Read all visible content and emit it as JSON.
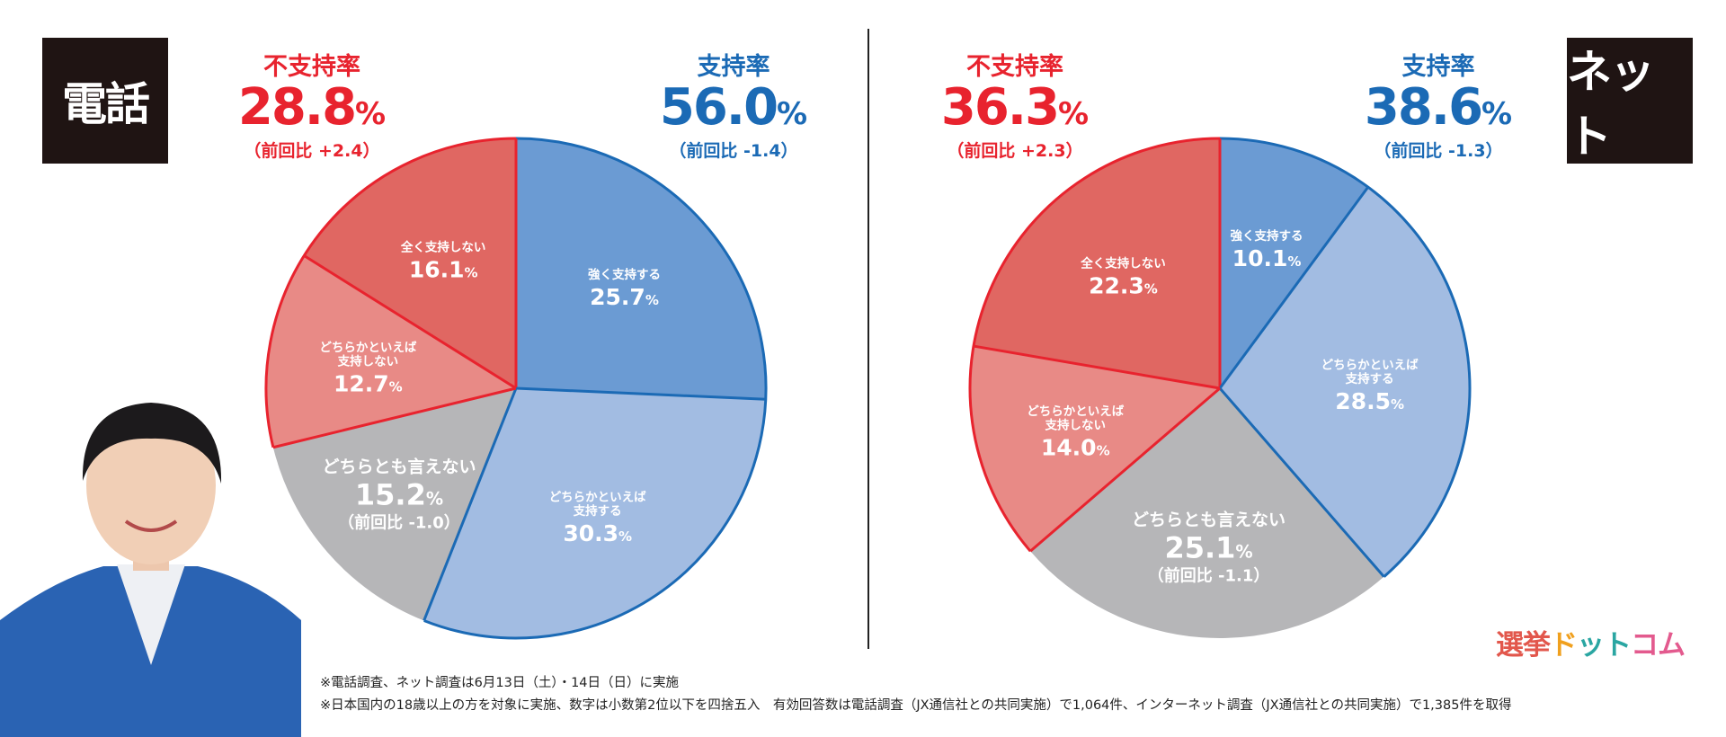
{
  "badges": {
    "phone": "電話",
    "net": "ネット"
  },
  "summary": {
    "phone": {
      "disapprove": {
        "label": "不支持率",
        "value": "28.8",
        "unit": "%",
        "diff": "（前回比 +2.4）"
      },
      "approve": {
        "label": "支持率",
        "value": "56.0",
        "unit": "%",
        "diff": "（前回比 -1.4）"
      }
    },
    "net": {
      "disapprove": {
        "label": "不支持率",
        "value": "36.3",
        "unit": "%",
        "diff": "（前回比 +2.3）"
      },
      "approve": {
        "label": "支持率",
        "value": "38.6",
        "unit": "%",
        "diff": "（前回比 -1.3）"
      }
    }
  },
  "colors": {
    "strong_support": "#6b9bd3",
    "lean_support": "#a2bce2",
    "neutral": "#b6b6b8",
    "lean_oppose": "#e88a86",
    "strong_oppose": "#e06762",
    "blue_line": "#1b6ab5",
    "red_line": "#e8232e"
  },
  "chart_data": [
    {
      "type": "pie",
      "title": "電話",
      "slices": [
        {
          "label": "強く支持する",
          "value": 25.7,
          "color": "#6b9bd3"
        },
        {
          "label": "どちらかといえば支持する",
          "value": 30.3,
          "color": "#a2bce2"
        },
        {
          "label": "どちらとも言えない",
          "value": 15.2,
          "color": "#b6b6b8",
          "note": "（前回比 -1.0）"
        },
        {
          "label": "どちらかといえば支持しない",
          "value": 12.7,
          "color": "#e88a86"
        },
        {
          "label": "全く支持しない",
          "value": 16.1,
          "color": "#e06762"
        }
      ]
    },
    {
      "type": "pie",
      "title": "ネット",
      "slices": [
        {
          "label": "強く支持する",
          "value": 10.1,
          "color": "#6b9bd3"
        },
        {
          "label": "どちらかといえば支持する",
          "value": 28.5,
          "color": "#a2bce2"
        },
        {
          "label": "どちらとも言えない",
          "value": 25.1,
          "color": "#b6b6b8",
          "note": "（前回比 -1.1）"
        },
        {
          "label": "どちらかといえば支持しない",
          "value": 14.0,
          "color": "#e88a86"
        },
        {
          "label": "全く支持しない",
          "value": 22.3,
          "color": "#e06762"
        }
      ]
    }
  ],
  "notes": [
    "※電話調査、ネット調査は6月13日（土）・14日（日）に実施",
    "※日本国内の18歳以上の方を対象に実施、数字は小数第2位以下を四捨五入　有効回答数は電話調査（JX通信社との共同実施）で1,064件、インターネット調査（JX通信社との共同実施）で1,385件を取得"
  ],
  "logo": {
    "part1": "選挙",
    "part2": "ド",
    "part3": "ット",
    "part4": "コム"
  }
}
